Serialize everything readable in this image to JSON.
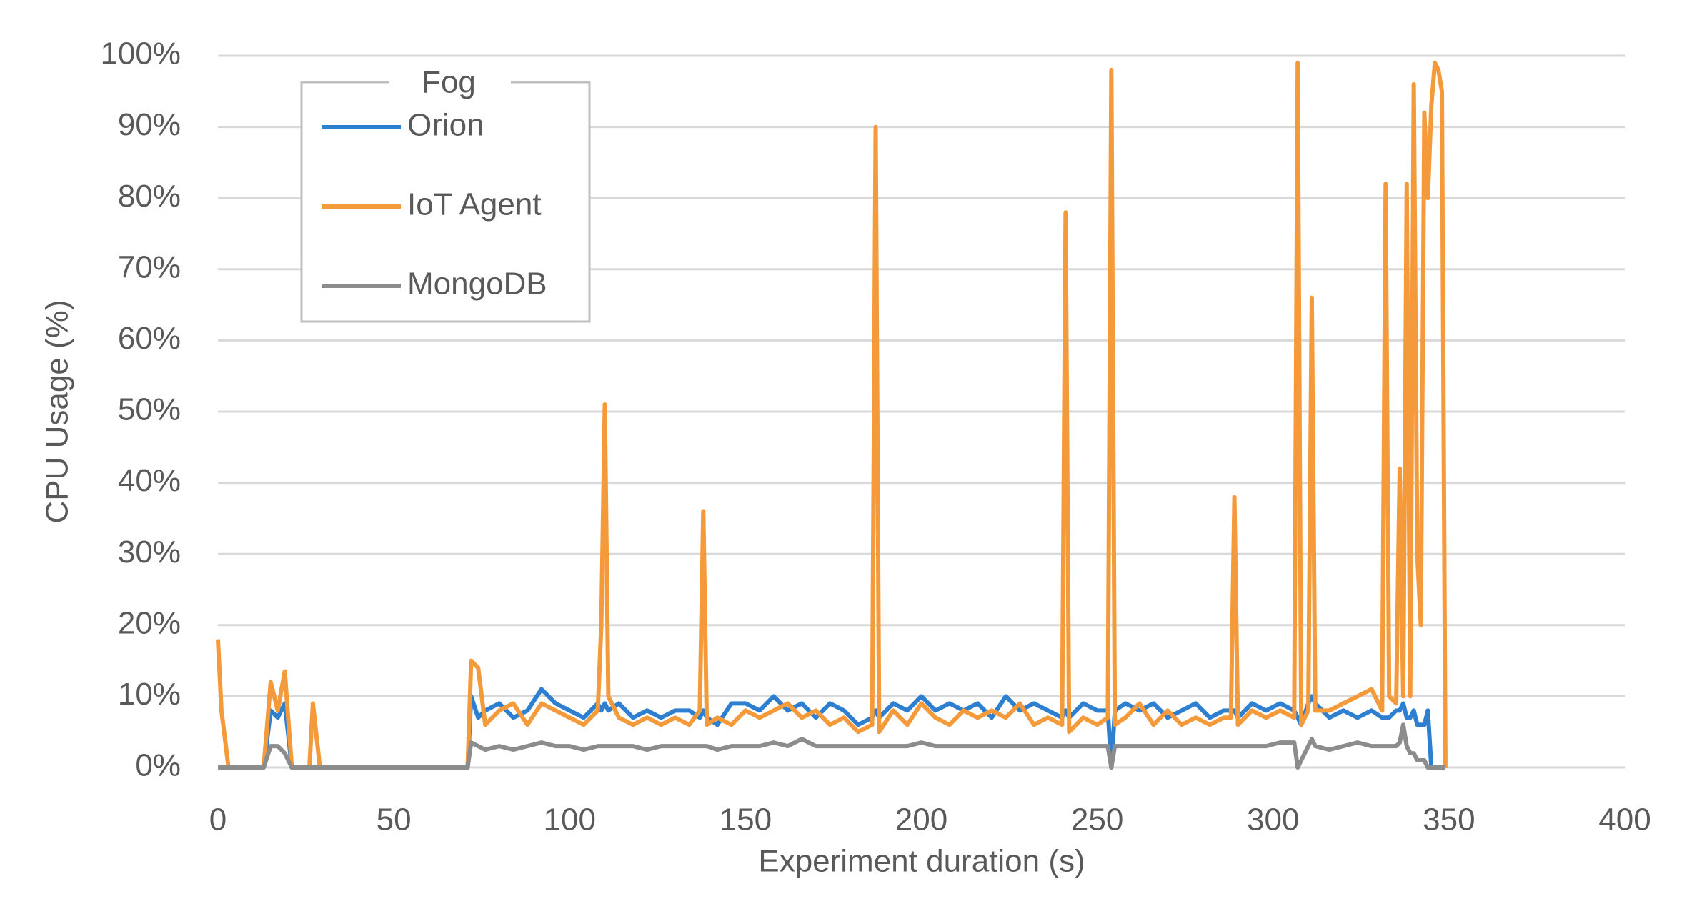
{
  "chart_data": {
    "type": "line",
    "xlabel": "Experiment duration (s)",
    "ylabel": "CPU Usage (%)",
    "legend_title": "Fog",
    "legend": "upper-left",
    "grid": true,
    "xlim": [
      0,
      400
    ],
    "xticks": [
      0,
      50,
      100,
      150,
      200,
      250,
      300,
      350,
      400
    ],
    "ylim": [
      0,
      100
    ],
    "yticks": [
      {
        "value": 0,
        "label": "0%"
      },
      {
        "value": 10,
        "label": "10%"
      },
      {
        "value": 20,
        "label": "20%"
      },
      {
        "value": 30,
        "label": "30%"
      },
      {
        "value": 40,
        "label": "40%"
      },
      {
        "value": 50,
        "label": "50%"
      },
      {
        "value": 60,
        "label": "60%"
      },
      {
        "value": 70,
        "label": "70%"
      },
      {
        "value": 80,
        "label": "80%"
      },
      {
        "value": 90,
        "label": "90%"
      },
      {
        "value": 100,
        "label": "100%"
      }
    ],
    "x": [
      0,
      1,
      3,
      13,
      15,
      17,
      19,
      21,
      26,
      27,
      29,
      71,
      72,
      74,
      76,
      80,
      84,
      88,
      92,
      96,
      100,
      104,
      108,
      109,
      110,
      111,
      114,
      118,
      122,
      126,
      130,
      134,
      137,
      138,
      139,
      142,
      146,
      150,
      154,
      158,
      162,
      166,
      170,
      174,
      178,
      182,
      186,
      187,
      188,
      192,
      196,
      200,
      204,
      208,
      212,
      216,
      220,
      224,
      228,
      232,
      236,
      240,
      241,
      242,
      246,
      250,
      253,
      254,
      255,
      258,
      262,
      266,
      270,
      274,
      278,
      282,
      286,
      288,
      289,
      290,
      294,
      298,
      302,
      306,
      307,
      308,
      310,
      311,
      312,
      316,
      320,
      324,
      328,
      331,
      332,
      333,
      335,
      336,
      337,
      338,
      339,
      340,
      341,
      342,
      343,
      344,
      345,
      346,
      347,
      348,
      349
    ],
    "series": [
      {
        "name": "Orion",
        "color": "#2e7fd0",
        "values": [
          0,
          0,
          0,
          0,
          8,
          7,
          9,
          0,
          0,
          0,
          0,
          0,
          10,
          7,
          8,
          9,
          7,
          8,
          11,
          9,
          8,
          7,
          9,
          8,
          9,
          8,
          9,
          7,
          8,
          7,
          8,
          8,
          7,
          8,
          7,
          6,
          9,
          9,
          8,
          10,
          8,
          9,
          7,
          9,
          8,
          6,
          7,
          8,
          7,
          9,
          8,
          10,
          8,
          9,
          8,
          9,
          7,
          10,
          8,
          9,
          8,
          7,
          8,
          7,
          9,
          8,
          8,
          0,
          8,
          9,
          8,
          9,
          7,
          8,
          9,
          7,
          8,
          8,
          8,
          7,
          9,
          8,
          9,
          8,
          7,
          6,
          9,
          10,
          9,
          7,
          8,
          7,
          8,
          7,
          7,
          7,
          8,
          8,
          9,
          7,
          7,
          8,
          6,
          6,
          6,
          8,
          0,
          0,
          0,
          0,
          0
        ]
      },
      {
        "name": "IoT Agent",
        "color": "#f59a3a",
        "values": [
          18,
          8,
          0,
          0,
          12,
          8,
          13.5,
          0,
          0,
          9,
          0,
          0,
          15,
          14,
          6,
          8,
          9,
          6,
          9,
          8,
          7,
          6,
          8,
          20,
          51,
          10,
          7,
          6,
          7,
          6,
          7,
          6,
          8,
          36,
          6,
          7,
          6,
          8,
          7,
          8,
          9,
          7,
          8,
          6,
          7,
          5,
          6,
          90,
          5,
          8,
          6,
          9,
          7,
          6,
          8,
          7,
          8,
          7,
          9,
          6,
          7,
          6,
          78,
          5,
          7,
          6,
          7,
          98,
          6,
          7,
          9,
          6,
          8,
          6,
          7,
          6,
          7,
          7,
          38,
          6,
          8,
          7,
          8,
          7,
          99,
          6,
          8,
          66,
          8,
          8,
          9,
          10,
          11,
          8,
          82,
          10,
          9,
          42,
          10,
          82,
          10,
          96,
          30,
          20,
          92,
          80,
          93,
          99,
          98,
          95,
          0
        ]
      },
      {
        "name": "MongoDB",
        "color": "#8c8c8c",
        "values": [
          0,
          0,
          0,
          0,
          3,
          3,
          2,
          0,
          0,
          0,
          0,
          0,
          3.5,
          3,
          2.5,
          3,
          2.5,
          3,
          3.5,
          3,
          3,
          2.5,
          3,
          3,
          3,
          3,
          3,
          3,
          2.5,
          3,
          3,
          3,
          3,
          3,
          3,
          2.5,
          3,
          3,
          3,
          3.5,
          3,
          4,
          3,
          3,
          3,
          3,
          3,
          3,
          3,
          3,
          3,
          3.5,
          3,
          3,
          3,
          3,
          3,
          3,
          3,
          3,
          3,
          3,
          3,
          3,
          3,
          3,
          3,
          0,
          3,
          3,
          3,
          3,
          3,
          3,
          3,
          3,
          3,
          3,
          3,
          3,
          3,
          3,
          3.5,
          3.5,
          0,
          1,
          3,
          4,
          3,
          2.5,
          3,
          3.5,
          3,
          3,
          3,
          3,
          3,
          3.5,
          6,
          3,
          2,
          2,
          1,
          1,
          1,
          0,
          0,
          0,
          0,
          0,
          0
        ]
      }
    ]
  }
}
